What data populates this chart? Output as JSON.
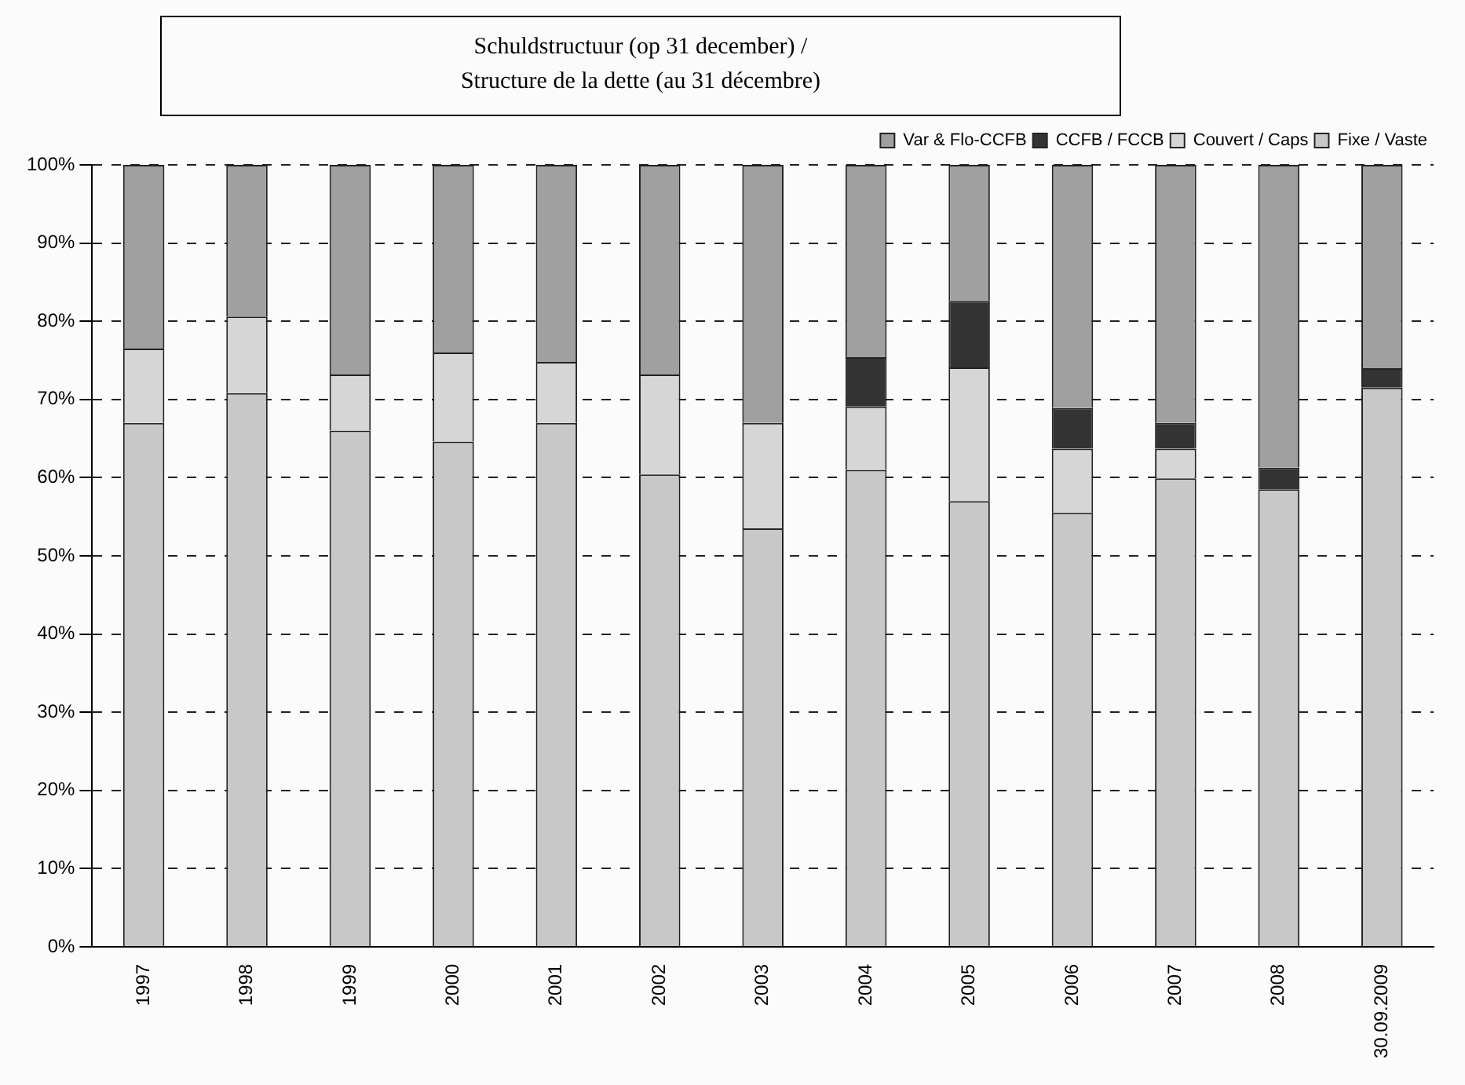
{
  "chart_data": {
    "type": "bar",
    "stacked": true,
    "title": "Schuldstructuur (op 31 december) /\nStructure de la dette (au 31 décembre)",
    "categories": [
      "1997",
      "1998",
      "1999",
      "2000",
      "2001",
      "2002",
      "2003",
      "2004",
      "2005",
      "2006",
      "2007",
      "2008",
      "30.09.2009"
    ],
    "series": [
      {
        "name": "Fixe / Vaste",
        "color": "#c8c8c8",
        "values": [
          67,
          70.8,
          66,
          64.6,
          67,
          60.4,
          53.5,
          61,
          57,
          55.5,
          59.9,
          58.5,
          71.5
        ]
      },
      {
        "name": "Couvert / Caps",
        "color": "#d6d6d6",
        "values": [
          9.5,
          9.8,
          7.2,
          11.4,
          7.8,
          12.8,
          13.5,
          8.1,
          17.1,
          8.2,
          3.8,
          0,
          0
        ]
      },
      {
        "name": "CCFB / FCCB",
        "color": "#333333",
        "values": [
          0,
          0,
          0,
          0,
          0,
          0,
          0,
          6.3,
          8.5,
          5.2,
          3.3,
          2.8,
          2.5
        ]
      },
      {
        "name": "Var & Flo-CCFB",
        "color": "#a0a0a0",
        "values": [
          23.5,
          19.4,
          26.8,
          24,
          25.2,
          26.8,
          33,
          24.6,
          17.4,
          31.1,
          33,
          38.7,
          26
        ]
      }
    ],
    "ylim": [
      0,
      100
    ],
    "yticks": [
      {
        "value": 0,
        "label": "0%"
      },
      {
        "value": 10,
        "label": "10%"
      },
      {
        "value": 20,
        "label": "20%"
      },
      {
        "value": 30,
        "label": "30%"
      },
      {
        "value": 40,
        "label": "40%"
      },
      {
        "value": 50,
        "label": "50%"
      },
      {
        "value": 60,
        "label": "60%"
      },
      {
        "value": 70,
        "label": "70%"
      },
      {
        "value": 80,
        "label": "80%"
      },
      {
        "value": 90,
        "label": "90%"
      },
      {
        "value": 100,
        "label": "100%"
      }
    ],
    "grid": "y",
    "legend": "top right"
  }
}
